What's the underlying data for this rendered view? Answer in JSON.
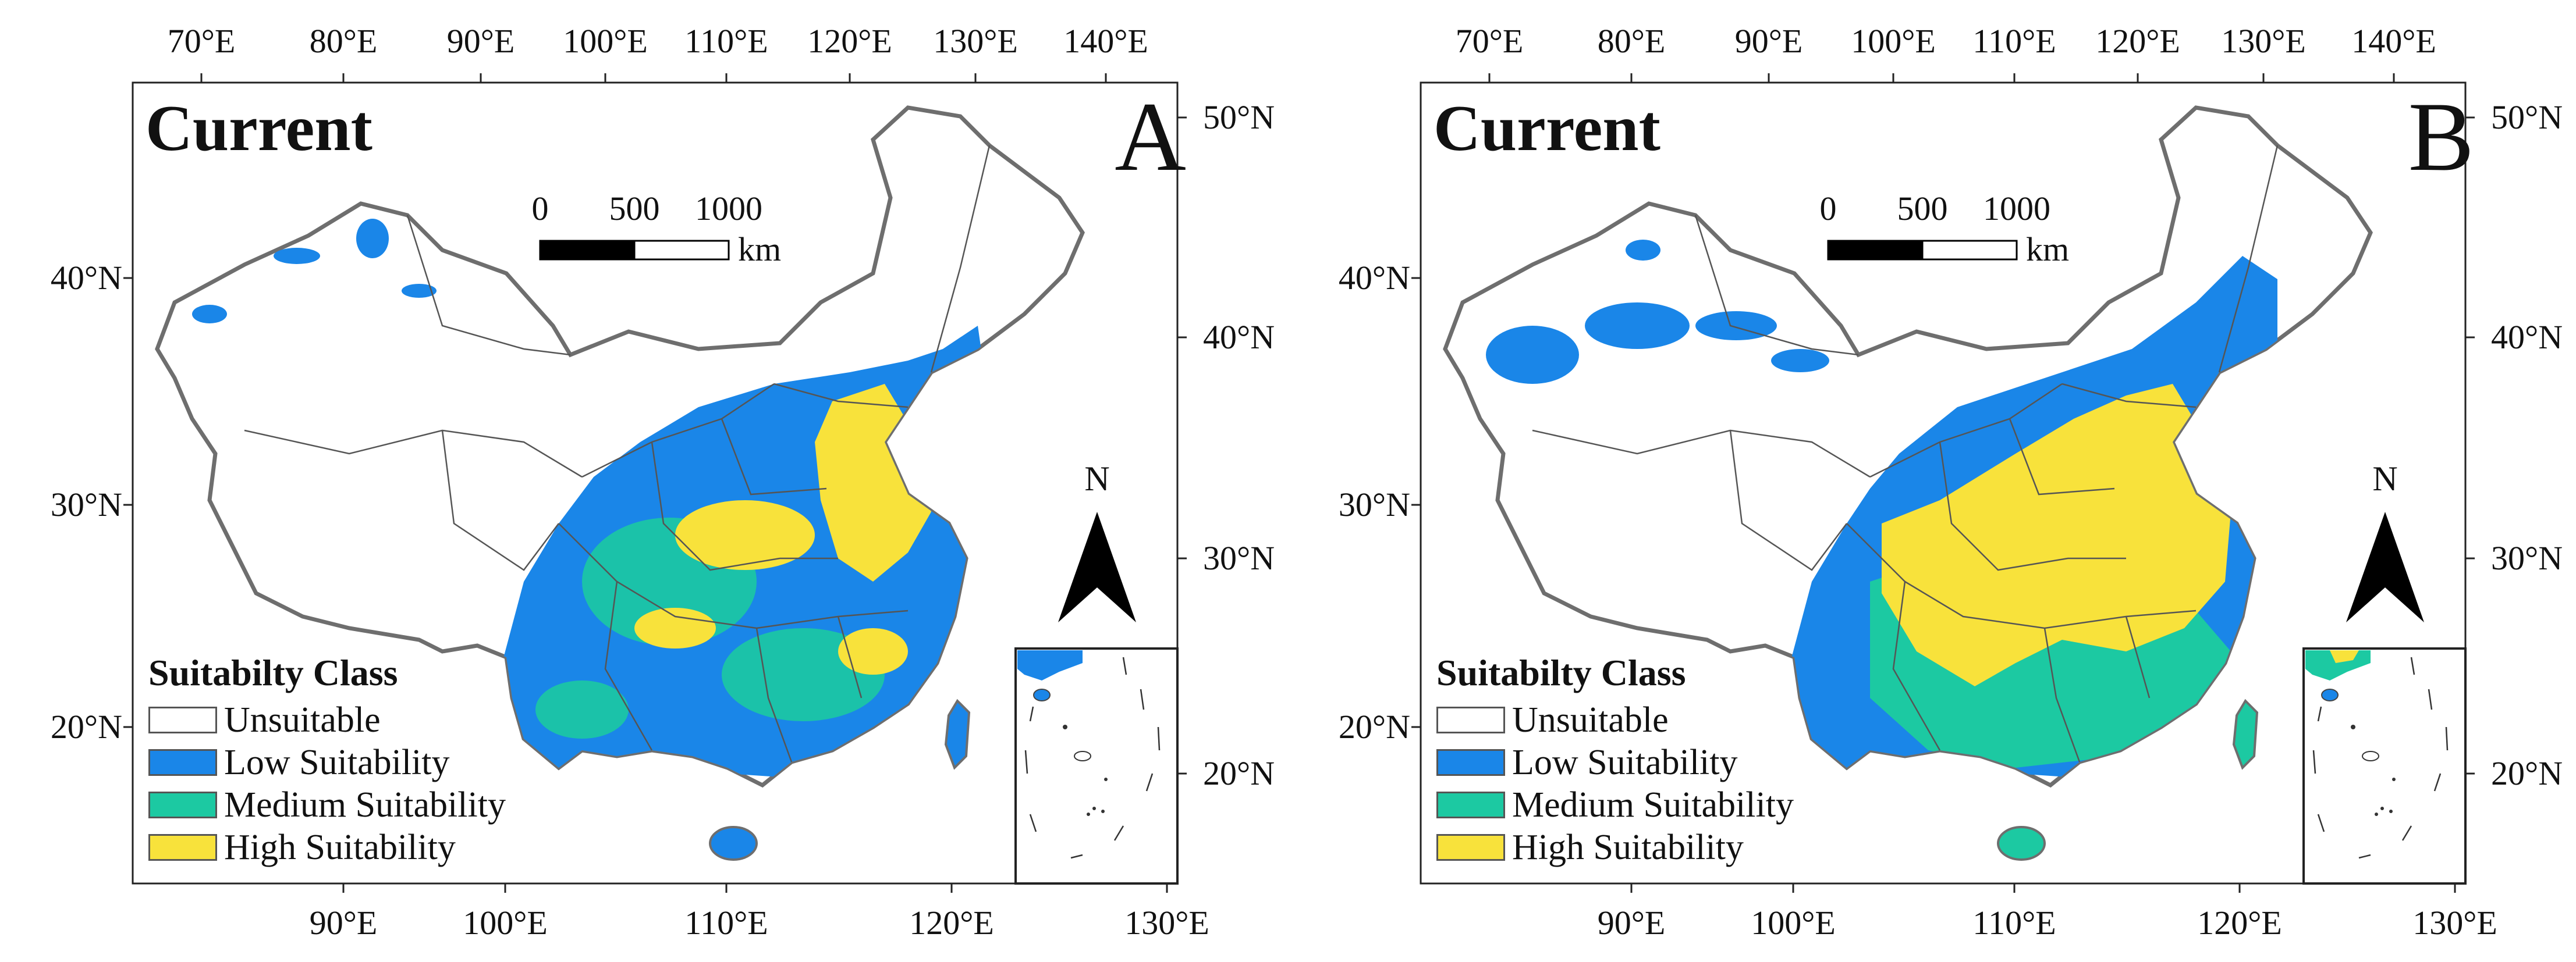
{
  "panels": [
    {
      "title": "Current",
      "letter": "A",
      "top_lon_labels": [
        "70°E",
        "80°E",
        "90°E",
        "100°E",
        "110°E",
        "120°E",
        "130°E",
        "140°E"
      ],
      "bottom_lon_labels": [
        "90°E",
        "100°E",
        "110°E",
        "120°E",
        "130°E"
      ],
      "left_lat_labels": [
        "40°N",
        "30°N",
        "20°N"
      ],
      "right_lat_labels": [
        "50°N",
        "40°N",
        "30°N",
        "20°N"
      ],
      "scale_bar": {
        "ticks": [
          "0",
          "500",
          "1000"
        ],
        "unit": "km"
      },
      "north_arrow": "N",
      "legend": {
        "title": "Suitabilty Class",
        "items": [
          {
            "label": "Unsuitable",
            "color": "#ffffff"
          },
          {
            "label": "Low Suitability",
            "color": "#1a86e8"
          },
          {
            "label": "Medium Suitability",
            "color": "#1cc9a2"
          },
          {
            "label": "High Suitability",
            "color": "#f8e23b"
          }
        ]
      }
    },
    {
      "title": "Current",
      "letter": "B",
      "top_lon_labels": [
        "70°E",
        "80°E",
        "90°E",
        "100°E",
        "110°E",
        "120°E",
        "130°E",
        "140°E"
      ],
      "bottom_lon_labels": [
        "90°E",
        "100°E",
        "110°E",
        "120°E",
        "130°E"
      ],
      "left_lat_labels": [
        "40°N",
        "30°N",
        "20°N"
      ],
      "right_lat_labels": [
        "50°N",
        "40°N",
        "30°N",
        "20°N"
      ],
      "scale_bar": {
        "ticks": [
          "0",
          "500",
          "1000"
        ],
        "unit": "km"
      },
      "north_arrow": "N",
      "legend": {
        "title": "Suitabilty Class",
        "items": [
          {
            "label": "Unsuitable",
            "color": "#ffffff"
          },
          {
            "label": "Low Suitability",
            "color": "#1a86e8"
          },
          {
            "label": "Medium Suitability",
            "color": "#1cc9a2"
          },
          {
            "label": "High Suitability",
            "color": "#f8e23b"
          }
        ]
      }
    }
  ]
}
